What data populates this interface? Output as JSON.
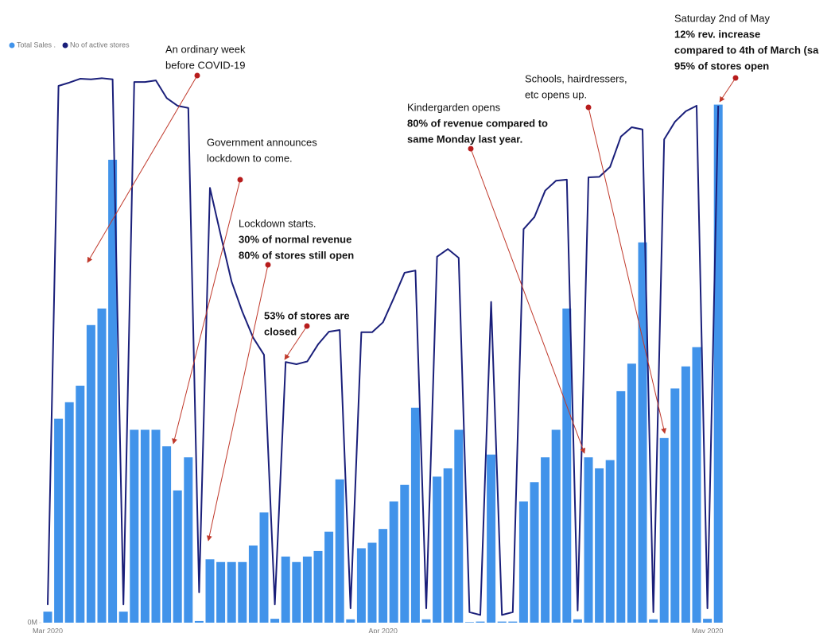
{
  "chart_data": {
    "type": "bar-line",
    "categories": [
      "Mar 2020",
      null,
      null,
      null,
      null,
      null,
      null,
      null,
      null,
      null,
      null,
      null,
      null,
      null,
      null,
      null,
      null,
      null,
      null,
      null,
      null,
      null,
      null,
      null,
      null,
      null,
      null,
      null,
      null,
      null,
      null,
      "Apr 2020",
      null,
      null,
      null,
      null,
      null,
      null,
      null,
      null,
      null,
      null,
      null,
      null,
      null,
      null,
      null,
      null,
      null,
      null,
      null,
      null,
      null,
      null,
      null,
      null,
      null,
      null,
      null,
      null,
      null,
      "May 2020",
      null
    ],
    "series": [
      {
        "name": "Total Sales .",
        "color": "#4193ea",
        "type": "bar",
        "values": [
          2,
          37,
          40,
          43,
          54,
          57,
          84,
          2,
          35,
          35,
          35,
          32,
          24,
          30,
          0.3,
          11.5,
          11,
          11,
          11,
          14,
          20,
          0.7,
          12,
          11,
          12,
          13,
          16.5,
          26,
          0.6,
          13.5,
          14.5,
          17,
          22,
          25,
          39,
          0.6,
          26.5,
          28,
          35,
          0.1,
          0.2,
          30.5,
          0.2,
          0.2,
          22,
          25.5,
          30,
          35,
          57,
          0.6,
          30,
          28,
          29.5,
          42,
          47,
          69,
          0.6,
          33.5,
          42.5,
          46.5,
          50,
          0.7,
          94
        ]
      },
      {
        "name": "No of active stores",
        "color": "#1a1f7a",
        "type": "line",
        "axis": "y2",
        "values": [
          3.2,
          97.4,
          98,
          98.7,
          98.6,
          98.8,
          98.6,
          3.3,
          98.1,
          98.1,
          98.4,
          95.2,
          93.8,
          93.4,
          5.5,
          78.9,
          70.3,
          61.9,
          56.4,
          51.7,
          48.6,
          3.3,
          47.3,
          46.9,
          47.4,
          50.5,
          52.8,
          53.1,
          2.6,
          52.7,
          52.7,
          54.5,
          58.9,
          63.5,
          63.9,
          2.6,
          66.4,
          67.8,
          66.2,
          1.9,
          1.4,
          58.2,
          1.4,
          1.9,
          71.4,
          73.6,
          78.4,
          80.2,
          80.4,
          2.2,
          80.8,
          80.9,
          82.7,
          88.2,
          89.9,
          89.5,
          1.9,
          87.7,
          90.9,
          92.8,
          93.8,
          2.6,
          93.8
        ]
      }
    ],
    "ylim": [
      0,
      100
    ],
    "yticks": [
      {
        "value": 0,
        "label": "0M"
      }
    ],
    "y2lim": [
      0,
      100
    ],
    "annotations": [
      {
        "lines": [
          "An ordinary week",
          "before COVID-19"
        ],
        "bold_lines": []
      },
      {
        "lines": [
          "Government announces",
          "lockdown to come."
        ],
        "bold_lines": []
      },
      {
        "lines": [
          "Lockdown starts."
        ],
        "bold_lines": [
          "30% of normal revenue",
          "80% of stores still open"
        ]
      },
      {
        "lines": [],
        "bold_lines": [
          "53% of stores are",
          "closed"
        ]
      },
      {
        "lines": [
          "Kindergarden opens"
        ],
        "bold_lines": [
          "80% of revenue compared to",
          "same Monday last year."
        ]
      },
      {
        "lines": [
          "Schools, hairdressers,",
          "etc opens up."
        ],
        "bold_lines": []
      },
      {
        "lines": [
          "Saturday 2nd of May"
        ],
        "bold_lines": [
          "12% rev. increase",
          "compared to 4th of March (sa",
          "95% of stores open"
        ]
      }
    ]
  }
}
